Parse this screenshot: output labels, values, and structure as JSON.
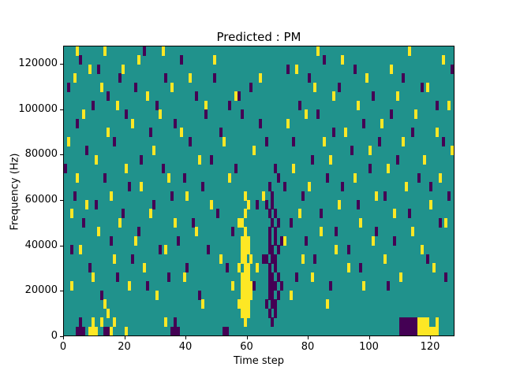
{
  "chart_data": {
    "type": "heatmap",
    "title": "Predicted : PM",
    "xlabel": "Time step",
    "ylabel": "Frequency (Hz)",
    "x_range": [
      0,
      128
    ],
    "y_range": [
      0,
      128000
    ],
    "grid": {
      "cols": 128,
      "rows": 32
    },
    "legend": "none",
    "colors": {
      "background": "#20928c",
      "high": "#fde725",
      "low": "#440154"
    },
    "xticks": [
      {
        "value": 0,
        "label": "0"
      },
      {
        "value": 20,
        "label": "20"
      },
      {
        "value": 40,
        "label": "40"
      },
      {
        "value": 60,
        "label": "60"
      },
      {
        "value": 80,
        "label": "80"
      },
      {
        "value": 100,
        "label": "100"
      },
      {
        "value": 120,
        "label": "120"
      }
    ],
    "yticks": [
      {
        "value": 0,
        "label": "0"
      },
      {
        "value": 20000,
        "label": "20000"
      },
      {
        "value": 40000,
        "label": "40000"
      },
      {
        "value": 60000,
        "label": "60000"
      },
      {
        "value": 80000,
        "label": "80000"
      },
      {
        "value": 100000,
        "label": "100000"
      },
      {
        "value": 120000,
        "label": "120000"
      }
    ],
    "cells_high": [
      [
        57,
        3
      ],
      [
        57,
        7
      ],
      [
        58,
        2
      ],
      [
        58,
        3
      ],
      [
        58,
        4
      ],
      [
        58,
        5
      ],
      [
        58,
        6
      ],
      [
        58,
        8
      ],
      [
        58,
        9
      ],
      [
        58,
        10
      ],
      [
        58,
        12
      ],
      [
        59,
        1
      ],
      [
        59,
        2
      ],
      [
        59,
        3
      ],
      [
        59,
        4
      ],
      [
        59,
        5
      ],
      [
        59,
        6
      ],
      [
        59,
        7
      ],
      [
        59,
        8
      ],
      [
        59,
        9
      ],
      [
        59,
        10
      ],
      [
        59,
        11
      ],
      [
        59,
        13
      ],
      [
        59,
        15
      ],
      [
        60,
        2
      ],
      [
        60,
        3
      ],
      [
        60,
        4
      ],
      [
        60,
        5
      ],
      [
        60,
        6
      ],
      [
        60,
        7
      ],
      [
        60,
        9
      ],
      [
        60,
        10
      ],
      [
        60,
        14
      ],
      [
        61,
        4
      ],
      [
        61,
        5
      ],
      [
        61,
        8
      ],
      [
        116,
        0
      ],
      [
        116,
        1
      ],
      [
        117,
        0
      ],
      [
        117,
        1
      ],
      [
        118,
        0
      ],
      [
        118,
        1
      ],
      [
        119,
        0
      ],
      [
        119,
        1
      ],
      [
        120,
        0
      ],
      [
        121,
        0
      ],
      [
        122,
        0
      ],
      [
        122,
        1
      ],
      [
        8,
        0
      ],
      [
        9,
        0
      ],
      [
        9,
        1
      ],
      [
        10,
        0
      ],
      [
        12,
        1
      ],
      [
        14,
        2
      ],
      [
        15,
        0
      ],
      [
        16,
        1
      ],
      [
        20,
        0
      ],
      [
        33,
        1
      ],
      [
        1,
        21
      ],
      [
        2,
        5
      ],
      [
        2,
        13
      ],
      [
        3,
        28
      ],
      [
        4,
        31
      ],
      [
        4,
        17
      ],
      [
        5,
        9
      ],
      [
        6,
        24
      ],
      [
        7,
        14
      ],
      [
        8,
        29
      ],
      [
        9,
        6
      ],
      [
        10,
        19
      ],
      [
        11,
        11
      ],
      [
        12,
        27
      ],
      [
        13,
        31
      ],
      [
        13,
        3
      ],
      [
        14,
        22
      ],
      [
        15,
        15
      ],
      [
        16,
        8
      ],
      [
        17,
        25
      ],
      [
        18,
        12
      ],
      [
        19,
        29
      ],
      [
        20,
        18
      ],
      [
        21,
        5
      ],
      [
        22,
        23
      ],
      [
        23,
        10
      ],
      [
        24,
        30
      ],
      [
        25,
        16
      ],
      [
        26,
        7
      ],
      [
        27,
        26
      ],
      [
        28,
        13
      ],
      [
        29,
        20
      ],
      [
        30,
        4
      ],
      [
        31,
        24
      ],
      [
        32,
        31
      ],
      [
        33,
        9
      ],
      [
        34,
        17
      ],
      [
        35,
        27
      ],
      [
        36,
        12
      ],
      [
        38,
        22
      ],
      [
        39,
        6
      ],
      [
        40,
        15
      ],
      [
        41,
        28
      ],
      [
        43,
        11
      ],
      [
        44,
        19
      ],
      [
        45,
        3
      ],
      [
        46,
        25
      ],
      [
        48,
        14
      ],
      [
        49,
        30
      ],
      [
        51,
        8
      ],
      [
        52,
        21
      ],
      [
        54,
        17
      ],
      [
        55,
        5
      ],
      [
        56,
        26
      ],
      [
        57,
        12
      ],
      [
        62,
        20
      ],
      [
        63,
        7
      ],
      [
        64,
        28
      ],
      [
        65,
        15
      ],
      [
        72,
        10
      ],
      [
        73,
        23
      ],
      [
        74,
        4
      ],
      [
        75,
        18
      ],
      [
        76,
        29
      ],
      [
        77,
        13
      ],
      [
        78,
        8
      ],
      [
        79,
        24
      ],
      [
        80,
        16
      ],
      [
        81,
        6
      ],
      [
        82,
        27
      ],
      [
        83,
        31
      ],
      [
        84,
        11
      ],
      [
        85,
        21
      ],
      [
        86,
        3
      ],
      [
        87,
        19
      ],
      [
        88,
        26
      ],
      [
        89,
        9
      ],
      [
        90,
        14
      ],
      [
        91,
        30
      ],
      [
        92,
        22
      ],
      [
        93,
        7
      ],
      [
        95,
        17
      ],
      [
        96,
        25
      ],
      [
        97,
        12
      ],
      [
        98,
        5
      ],
      [
        99,
        28
      ],
      [
        100,
        20
      ],
      [
        101,
        10
      ],
      [
        102,
        15
      ],
      [
        104,
        23
      ],
      [
        105,
        8
      ],
      [
        106,
        18
      ],
      [
        107,
        29
      ],
      [
        108,
        13
      ],
      [
        109,
        26
      ],
      [
        110,
        6
      ],
      [
        111,
        21
      ],
      [
        112,
        16
      ],
      [
        113,
        31
      ],
      [
        114,
        11
      ],
      [
        115,
        24
      ],
      [
        117,
        9
      ],
      [
        118,
        19
      ],
      [
        119,
        27
      ],
      [
        120,
        14
      ],
      [
        121,
        7
      ],
      [
        122,
        22
      ],
      [
        123,
        17
      ],
      [
        124,
        30
      ],
      [
        125,
        12
      ],
      [
        126,
        25
      ],
      [
        127,
        20
      ]
    ],
    "cells_low": [
      [
        66,
        3
      ],
      [
        66,
        8
      ],
      [
        66,
        14
      ],
      [
        67,
        2
      ],
      [
        67,
        4
      ],
      [
        67,
        5
      ],
      [
        67,
        6
      ],
      [
        67,
        7
      ],
      [
        67,
        9
      ],
      [
        67,
        10
      ],
      [
        67,
        11
      ],
      [
        67,
        13
      ],
      [
        67,
        16
      ],
      [
        68,
        1
      ],
      [
        68,
        3
      ],
      [
        68,
        4
      ],
      [
        68,
        5
      ],
      [
        68,
        6
      ],
      [
        68,
        8
      ],
      [
        68,
        9
      ],
      [
        68,
        12
      ],
      [
        68,
        14
      ],
      [
        68,
        15
      ],
      [
        69,
        2
      ],
      [
        69,
        3
      ],
      [
        69,
        5
      ],
      [
        69,
        7
      ],
      [
        69,
        8
      ],
      [
        69,
        10
      ],
      [
        69,
        11
      ],
      [
        69,
        13
      ],
      [
        70,
        4
      ],
      [
        70,
        6
      ],
      [
        70,
        9
      ],
      [
        70,
        12
      ],
      [
        71,
        5
      ],
      [
        71,
        10
      ],
      [
        110,
        0
      ],
      [
        110,
        1
      ],
      [
        111,
        0
      ],
      [
        111,
        1
      ],
      [
        112,
        0
      ],
      [
        112,
        1
      ],
      [
        113,
        0
      ],
      [
        113,
        1
      ],
      [
        114,
        0
      ],
      [
        114,
        1
      ],
      [
        115,
        0
      ],
      [
        115,
        1
      ],
      [
        4,
        0
      ],
      [
        5,
        0
      ],
      [
        5,
        1
      ],
      [
        6,
        0
      ],
      [
        13,
        0
      ],
      [
        14,
        0
      ],
      [
        35,
        0
      ],
      [
        36,
        0
      ],
      [
        36,
        1
      ],
      [
        37,
        0
      ],
      [
        52,
        0
      ],
      [
        53,
        0
      ],
      [
        0,
        18
      ],
      [
        1,
        27
      ],
      [
        2,
        9
      ],
      [
        3,
        15
      ],
      [
        4,
        23
      ],
      [
        5,
        30
      ],
      [
        6,
        12
      ],
      [
        7,
        20
      ],
      [
        8,
        7
      ],
      [
        9,
        25
      ],
      [
        10,
        14
      ],
      [
        11,
        29
      ],
      [
        12,
        4
      ],
      [
        13,
        17
      ],
      [
        14,
        26
      ],
      [
        15,
        10
      ],
      [
        16,
        21
      ],
      [
        17,
        6
      ],
      [
        18,
        28
      ],
      [
        19,
        13
      ],
      [
        20,
        24
      ],
      [
        21,
        16
      ],
      [
        22,
        8
      ],
      [
        23,
        27
      ],
      [
        24,
        11
      ],
      [
        25,
        19
      ],
      [
        26,
        31
      ],
      [
        27,
        5
      ],
      [
        28,
        22
      ],
      [
        29,
        14
      ],
      [
        30,
        25
      ],
      [
        31,
        9
      ],
      [
        32,
        18
      ],
      [
        33,
        28
      ],
      [
        34,
        6
      ],
      [
        35,
        15
      ],
      [
        36,
        23
      ],
      [
        37,
        10
      ],
      [
        38,
        30
      ],
      [
        39,
        17
      ],
      [
        40,
        7
      ],
      [
        41,
        21
      ],
      [
        42,
        12
      ],
      [
        43,
        26
      ],
      [
        44,
        4
      ],
      [
        45,
        16
      ],
      [
        46,
        24
      ],
      [
        47,
        9
      ],
      [
        48,
        19
      ],
      [
        49,
        28
      ],
      [
        50,
        13
      ],
      [
        51,
        22
      ],
      [
        53,
        7
      ],
      [
        54,
        25
      ],
      [
        55,
        11
      ],
      [
        56,
        18
      ],
      [
        57,
        26
      ],
      [
        58,
        24
      ],
      [
        61,
        27
      ],
      [
        62,
        5
      ],
      [
        63,
        14
      ],
      [
        64,
        23
      ],
      [
        65,
        8
      ],
      [
        66,
        21
      ],
      [
        69,
        18
      ],
      [
        70,
        17
      ],
      [
        72,
        16
      ],
      [
        73,
        29
      ],
      [
        74,
        12
      ],
      [
        75,
        21
      ],
      [
        76,
        6
      ],
      [
        77,
        25
      ],
      [
        78,
        15
      ],
      [
        79,
        10
      ],
      [
        80,
        28
      ],
      [
        81,
        19
      ],
      [
        82,
        8
      ],
      [
        83,
        24
      ],
      [
        84,
        13
      ],
      [
        85,
        30
      ],
      [
        86,
        17
      ],
      [
        87,
        5
      ],
      [
        88,
        22
      ],
      [
        89,
        11
      ],
      [
        90,
        27
      ],
      [
        91,
        16
      ],
      [
        93,
        9
      ],
      [
        94,
        20
      ],
      [
        95,
        29
      ],
      [
        96,
        14
      ],
      [
        97,
        7
      ],
      [
        98,
        23
      ],
      [
        100,
        18
      ],
      [
        101,
        26
      ],
      [
        102,
        11
      ],
      [
        103,
        21
      ],
      [
        105,
        15
      ],
      [
        106,
        5
      ],
      [
        107,
        24
      ],
      [
        108,
        10
      ],
      [
        109,
        19
      ],
      [
        111,
        28
      ],
      [
        113,
        13
      ],
      [
        114,
        22
      ],
      [
        116,
        17
      ],
      [
        117,
        27
      ],
      [
        119,
        8
      ],
      [
        120,
        16
      ],
      [
        122,
        25
      ],
      [
        123,
        12
      ],
      [
        124,
        21
      ],
      [
        125,
        6
      ],
      [
        126,
        15
      ],
      [
        127,
        29
      ]
    ]
  }
}
